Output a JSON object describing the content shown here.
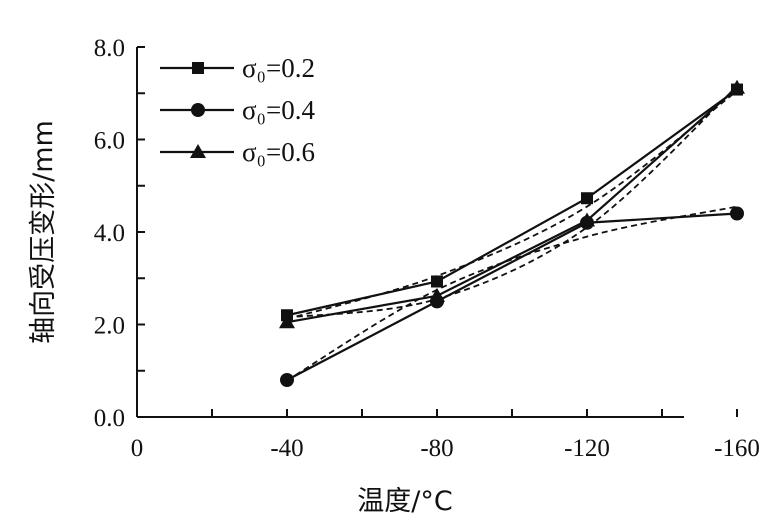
{
  "chart_data": {
    "type": "line",
    "xlabel": "温度/°C",
    "ylabel": "轴向受压变形/mm",
    "x_tick_labels": [
      "0",
      "-40",
      "-80",
      "-120",
      "-160"
    ],
    "x_tick_values": [
      0,
      -40,
      -80,
      -120,
      -160
    ],
    "xlim": [
      0,
      -160
    ],
    "x_direction": "decreasing to the right",
    "y_tick_labels": [
      "0.0",
      "2.0",
      "4.0",
      "6.0",
      "8.0"
    ],
    "y_tick_values": [
      0,
      2,
      4,
      6,
      8
    ],
    "ylim": [
      0,
      8
    ],
    "legend_position": "top-left",
    "grid": false,
    "series": [
      {
        "name": "σ₀=0.2",
        "marker": "square",
        "x": [
          -40,
          -80,
          -120,
          -160
        ],
        "y": [
          2.2,
          2.93,
          4.73,
          7.08
        ],
        "fit_y": [
          2.12,
          3.05,
          4.55,
          7.05
        ]
      },
      {
        "name": "σ₀=0.4",
        "marker": "circle",
        "x": [
          -40,
          -80,
          -120,
          -160
        ],
        "y": [
          0.8,
          2.5,
          4.2,
          4.4
        ],
        "fit_y": [
          0.79,
          2.75,
          3.9,
          4.55
        ]
      },
      {
        "name": "σ₀=0.6",
        "marker": "triangle",
        "x": [
          -40,
          -80,
          -120,
          -160
        ],
        "y": [
          2.05,
          2.62,
          4.25,
          7.12
        ],
        "fit_y": [
          2.15,
          2.55,
          4.1,
          7.15
        ]
      }
    ]
  }
}
